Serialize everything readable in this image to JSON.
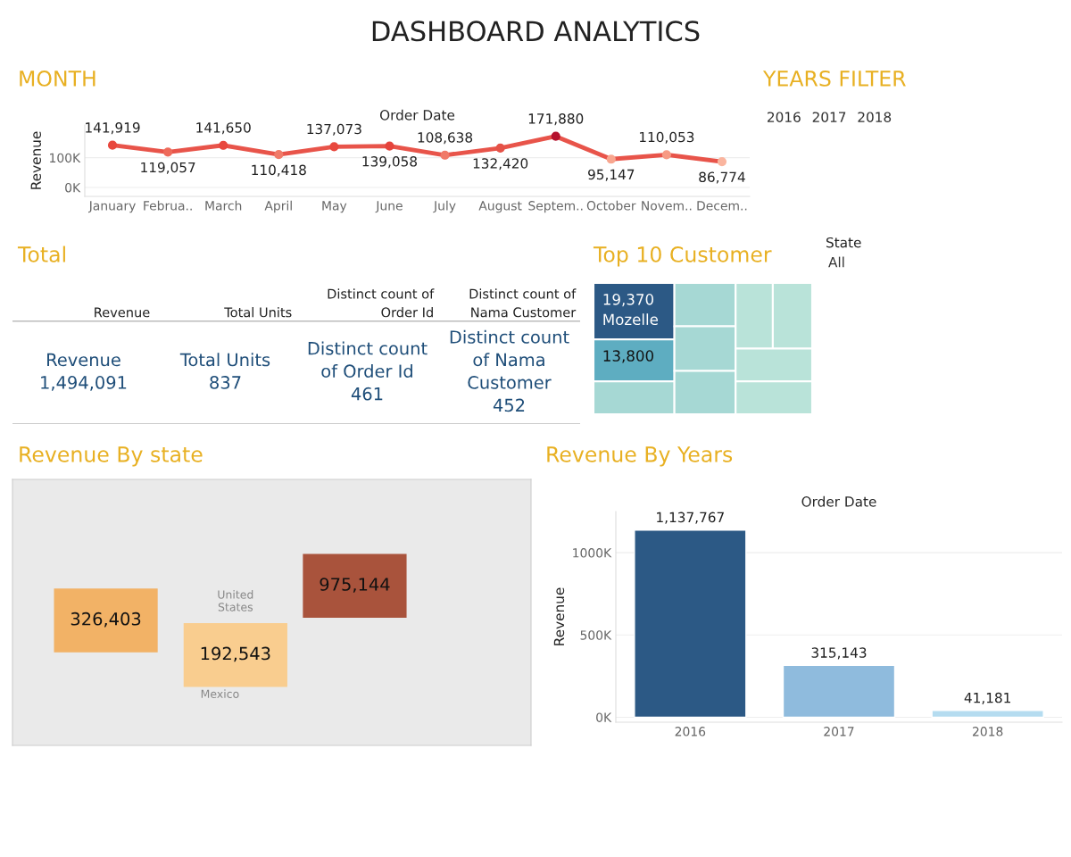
{
  "chart_data": [
    {
      "type": "other",
      "title": "DASHBOARD ANALYTICS"
    },
    {
      "type": "line",
      "title": "MONTH",
      "xlabel": "Order Date",
      "ylabel": "Revenue",
      "categories": [
        "January",
        "Februa..",
        "March",
        "April",
        "May",
        "June",
        "July",
        "August",
        "Septem..",
        "October",
        "Novem..",
        "Decem.."
      ],
      "values": [
        141919,
        119057,
        141650,
        110418,
        137073,
        139058,
        108638,
        132420,
        171880,
        95147,
        110053,
        86774
      ],
      "color": "#e8544a",
      "colors": [
        "#e8483e",
        "#ee6a5a",
        "#e8483e",
        "#f07a68",
        "#e8483e",
        "#e5443c",
        "#f07a68",
        "#e55248",
        "#b5122e",
        "#f8a68f",
        "#f79a84",
        "#fab59f"
      ],
      "value_labels": [
        "141,919",
        "119,057",
        "141,650",
        "110,418",
        "137,073",
        "139,058",
        "108,638",
        "132,420",
        "171,880",
        "95,147",
        "110,053",
        "86,774"
      ],
      "ylim": [
        -30000,
        210000
      ],
      "yticks": [
        {
          "value": 0,
          "label": "0K"
        },
        {
          "value": 100000,
          "label": "100K"
        }
      ],
      "marker": "circle",
      "grid": "y"
    },
    {
      "type": "other",
      "title": "YEARS FILTER",
      "categories": [
        "2016",
        "2017",
        "2018"
      ]
    },
    {
      "type": "other",
      "title": "Total",
      "categories": [
        "Revenue",
        "Total Units",
        "Distinct count of Order Id",
        "Distinct count of Nama Customer"
      ],
      "value_labels": [
        "1,494,091",
        "837",
        "461",
        "452"
      ]
    },
    {
      "type": "other",
      "title": "Top 10 Customer",
      "categories": [
        "Mozelle",
        null
      ],
      "values": [
        19370,
        13800
      ],
      "colors": [
        "#2c5985",
        "#5eadc1"
      ],
      "value_labels": [
        "19,370",
        "13,800"
      ],
      "annotations": [
        "State",
        "All"
      ]
    },
    {
      "type": "other",
      "title": "Revenue By state",
      "categories": [
        null,
        null,
        null
      ],
      "colors": [
        "#f2b266",
        "#f9cd8f",
        "#a9533c"
      ],
      "value_labels": [
        "326,403",
        "192,543",
        "975,144"
      ],
      "annotations": [
        "United States",
        "Mexico"
      ]
    },
    {
      "type": "bar",
      "title": "Revenue By Years",
      "xlabel": "Order Date",
      "ylabel": "Revenue",
      "categories": [
        "2016",
        "2017",
        "2018"
      ],
      "values": [
        1137767,
        315143,
        41181
      ],
      "colors": [
        "#2c5985",
        "#8fbbdd",
        "#b5dcf0"
      ],
      "ylim": [
        -30000,
        1250000
      ],
      "yticks": [
        {
          "value": 0,
          "label": "0K"
        },
        {
          "value": 500000,
          "label": "500K"
        },
        {
          "value": 1000000,
          "label": "1000K"
        }
      ],
      "value_labels": [
        "1,137,767",
        "315,143",
        "41,181"
      ],
      "grid": "y"
    }
  ]
}
